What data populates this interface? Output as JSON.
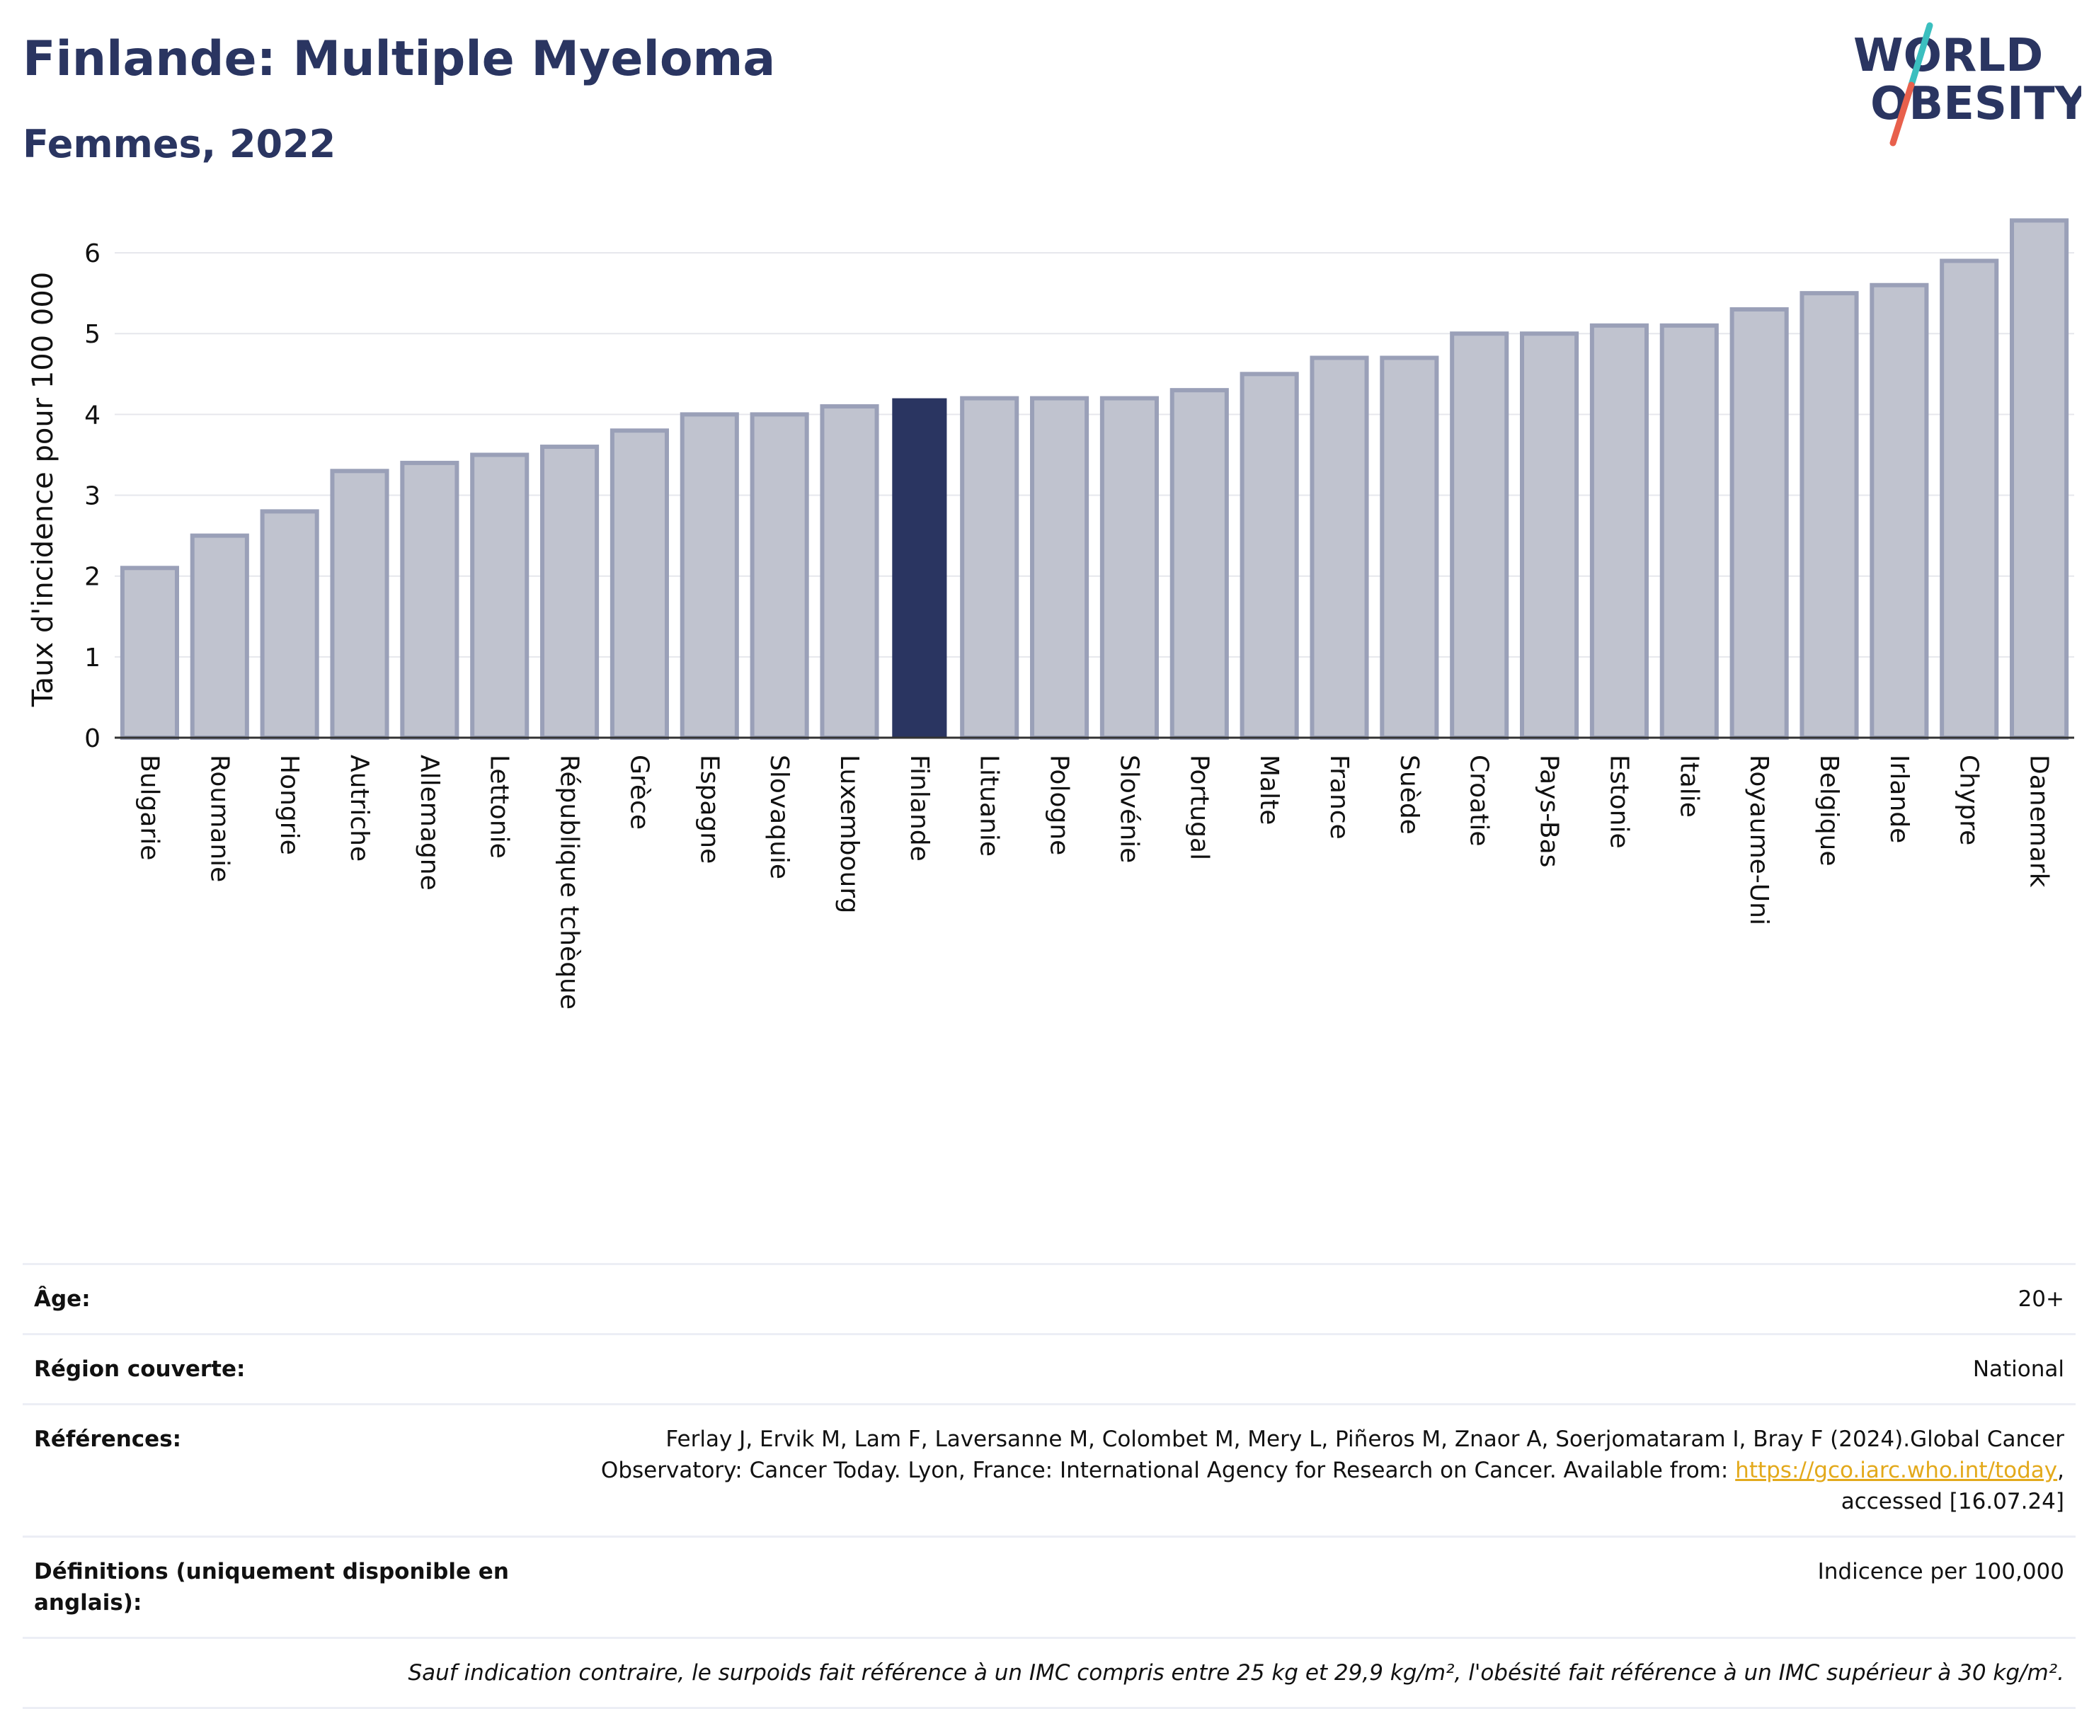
{
  "header": {
    "title": "Finlande: Multiple Myeloma",
    "subtitle": "Femmes, 2022"
  },
  "logo": {
    "line1": "WORLD",
    "line2": "OBESITY",
    "text_color": "#2a3561",
    "slash_top_color": "#3bbfbf",
    "slash_bottom_color": "#e8604c"
  },
  "colors": {
    "bar_fill": "#c0c3cf",
    "bar_stroke": "#9aa0b8",
    "highlight_fill": "#2a3561",
    "grid": "#e6e7ec",
    "axis": "#333333"
  },
  "chart_data": {
    "type": "bar",
    "ylabel": "Taux d'incidence pour 100 000",
    "ylim": [
      0,
      6.5
    ],
    "yticks": [
      0,
      1,
      2,
      3,
      4,
      5,
      6
    ],
    "grid": true,
    "highlight": "Finlande",
    "categories": [
      "Bulgarie",
      "Roumanie",
      "Hongrie",
      "Autriche",
      "Allemagne",
      "Lettonie",
      "République tchèque",
      "Grèce",
      "Espagne",
      "Slovaquie",
      "Luxembourg",
      "Finlande",
      "Lituanie",
      "Pologne",
      "Slovénie",
      "Portugal",
      "Malte",
      "France",
      "Suède",
      "Croatie",
      "Pays-Bas",
      "Estonie",
      "Italie",
      "Royaume-Uni",
      "Belgique",
      "Irlande",
      "Chypre",
      "Danemark"
    ],
    "values": [
      2.1,
      2.5,
      2.8,
      3.3,
      3.4,
      3.5,
      3.6,
      3.8,
      4.0,
      4.0,
      4.1,
      4.2,
      4.2,
      4.2,
      4.2,
      4.3,
      4.5,
      4.7,
      4.7,
      5.0,
      5.0,
      5.1,
      5.1,
      5.3,
      5.5,
      5.6,
      5.9,
      6.4
    ]
  },
  "info": {
    "age": {
      "label": "Âge:",
      "value": "20+"
    },
    "region": {
      "label": "Région couverte:",
      "value": "National"
    },
    "references": {
      "label": "Références:",
      "line1": "Ferlay J, Ervik M, Lam F, Laversanne M, Colombet M, Mery L, Piñeros M, Znaor A, Soerjomataram I, Bray F (2024).Global Cancer",
      "line2_prefix": "Observatory: Cancer Today. Lyon, France: International Agency for Research on Cancer. Available from: ",
      "link": "https://gco.iarc.who.int/today",
      "line2_suffix": ",",
      "line3": "accessed [16.07.24]"
    },
    "definitions": {
      "label": "Définitions (uniquement disponible en anglais):",
      "value": "Indicence per 100,000"
    },
    "note": "Sauf indication contraire, le surpoids fait référence à un IMC compris entre 25 kg et 29,9 kg/m², l'obésité fait référence à un IMC supérieur à 30 kg/m²."
  }
}
